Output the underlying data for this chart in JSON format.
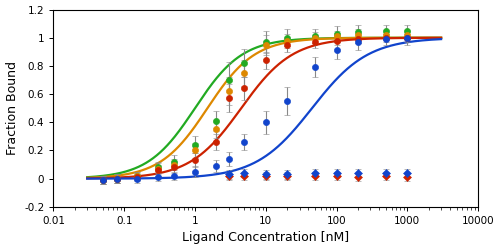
{
  "xlabel": "Ligand Concentration [nM]",
  "ylabel": "Fraction Bound",
  "xlim": [
    0.01,
    10000
  ],
  "ylim": [
    -0.2,
    1.2
  ],
  "yticks": [
    -0.2,
    0.0,
    0.2,
    0.4,
    0.6,
    0.8,
    1.0,
    1.2
  ],
  "ytick_labels": [
    "-0.2",
    "0",
    "0.2",
    "0.4",
    "0.6",
    "0.8",
    "1",
    "1.2"
  ],
  "xtick_labels": [
    "0.01",
    "0.1",
    "1",
    "10",
    "100",
    "1000",
    "10000"
  ],
  "xtick_vals": [
    0.01,
    0.1,
    1,
    10,
    100,
    1000,
    10000
  ],
  "series": [
    {
      "name": "green_circles",
      "color": "#22AA22",
      "marker": "o",
      "kd": 1.0,
      "hill": 1.3,
      "x_data": [
        0.05,
        0.08,
        0.15,
        0.3,
        0.5,
        1.0,
        2.0,
        3.0,
        5.0,
        10.0,
        20.0,
        50.0,
        100.0,
        200.0,
        500.0,
        1000.0
      ],
      "y_data": [
        -0.01,
        0.0,
        0.02,
        0.08,
        0.12,
        0.24,
        0.41,
        0.7,
        0.82,
        0.97,
        1.0,
        1.01,
        1.03,
        1.04,
        1.05,
        1.05
      ],
      "y_err": [
        0.03,
        0.03,
        0.03,
        0.04,
        0.05,
        0.06,
        0.07,
        0.13,
        0.1,
        0.08,
        0.06,
        0.05,
        0.05,
        0.05,
        0.04,
        0.04
      ]
    },
    {
      "name": "orange_circles",
      "color": "#DD8800",
      "marker": "o",
      "kd": 1.5,
      "hill": 1.3,
      "x_data": [
        0.05,
        0.08,
        0.15,
        0.3,
        0.5,
        1.0,
        2.0,
        3.0,
        5.0,
        10.0,
        20.0,
        50.0,
        100.0,
        200.0,
        500.0,
        1000.0
      ],
      "y_data": [
        -0.01,
        0.0,
        0.02,
        0.07,
        0.1,
        0.2,
        0.35,
        0.62,
        0.75,
        0.95,
        0.98,
        1.0,
        1.01,
        1.02,
        1.02,
        1.02
      ],
      "y_err": [
        0.03,
        0.03,
        0.03,
        0.04,
        0.04,
        0.05,
        0.06,
        0.1,
        0.09,
        0.07,
        0.05,
        0.04,
        0.04,
        0.04,
        0.03,
        0.03
      ]
    },
    {
      "name": "red_circles",
      "color": "#CC2200",
      "marker": "o",
      "kd": 4.5,
      "hill": 1.2,
      "x_data": [
        0.05,
        0.08,
        0.15,
        0.3,
        0.5,
        1.0,
        2.0,
        3.0,
        5.0,
        10.0,
        20.0,
        50.0,
        100.0,
        200.0,
        500.0,
        1000.0
      ],
      "y_data": [
        -0.01,
        0.0,
        0.01,
        0.06,
        0.08,
        0.13,
        0.26,
        0.57,
        0.64,
        0.84,
        0.95,
        0.97,
        0.98,
        0.99,
        1.0,
        1.0
      ],
      "y_err": [
        0.03,
        0.03,
        0.03,
        0.04,
        0.04,
        0.05,
        0.06,
        0.1,
        0.08,
        0.06,
        0.05,
        0.04,
        0.03,
        0.03,
        0.03,
        0.03
      ]
    },
    {
      "name": "blue_circles",
      "color": "#1144CC",
      "marker": "o",
      "kd": 45.0,
      "hill": 1.1,
      "x_data": [
        0.05,
        0.08,
        0.15,
        0.3,
        0.5,
        1.0,
        2.0,
        3.0,
        5.0,
        10.0,
        20.0,
        50.0,
        100.0,
        200.0,
        500.0,
        1000.0
      ],
      "y_data": [
        -0.01,
        0.0,
        0.0,
        0.01,
        0.02,
        0.05,
        0.09,
        0.14,
        0.26,
        0.4,
        0.55,
        0.79,
        0.91,
        0.97,
        0.99,
        1.0
      ],
      "y_err": [
        0.03,
        0.03,
        0.03,
        0.03,
        0.03,
        0.04,
        0.04,
        0.05,
        0.06,
        0.08,
        0.1,
        0.07,
        0.06,
        0.06,
        0.04,
        0.05
      ]
    },
    {
      "name": "red_diamonds",
      "color": "#CC2200",
      "marker": "D",
      "x_data": [
        3.0,
        5.0,
        10.0,
        20.0,
        50.0,
        100.0,
        200.0,
        500.0,
        1000.0
      ],
      "y_data": [
        0.02,
        0.02,
        0.02,
        0.02,
        0.02,
        0.02,
        0.01,
        0.02,
        0.01
      ],
      "y_err": [
        0.03,
        0.03,
        0.03,
        0.03,
        0.03,
        0.03,
        0.03,
        0.03,
        0.03
      ]
    },
    {
      "name": "blue_diamonds",
      "color": "#1144CC",
      "marker": "D",
      "x_data": [
        3.0,
        5.0,
        10.0,
        20.0,
        50.0,
        100.0,
        200.0,
        500.0,
        1000.0
      ],
      "y_data": [
        0.03,
        0.04,
        0.03,
        0.03,
        0.04,
        0.04,
        0.04,
        0.04,
        0.04
      ],
      "y_err": [
        0.03,
        0.03,
        0.03,
        0.03,
        0.03,
        0.03,
        0.03,
        0.03,
        0.03
      ]
    }
  ],
  "curve_order": [
    "green_circles",
    "orange_circles",
    "red_circles",
    "blue_circles"
  ],
  "fig_width": 5.0,
  "fig_height": 2.5,
  "dpi": 100,
  "bg_color": "#FFFFFF",
  "font_size_label": 9,
  "font_size_tick": 7.5,
  "linewidth": 1.6,
  "markersize": 4.5,
  "capsize": 2,
  "elinewidth": 0.8,
  "ecolor": "#888888"
}
